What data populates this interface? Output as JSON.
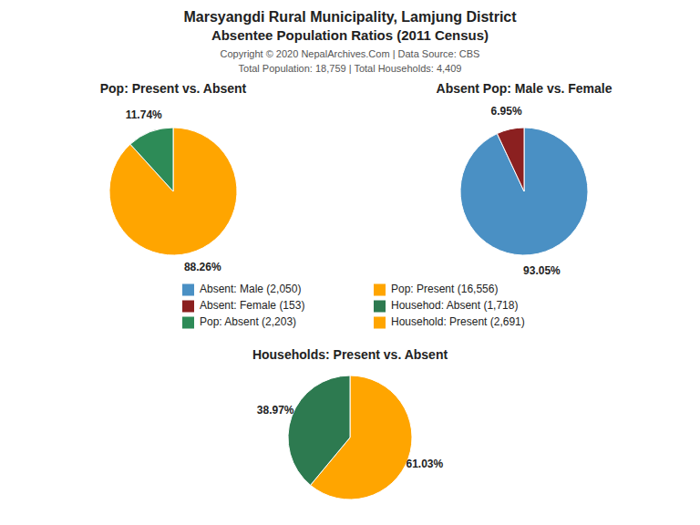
{
  "title": "Marsyangdi Rural Municipality, Lamjung District",
  "subtitle": "Absentee Population Ratios (2011 Census)",
  "annotations": [
    "Copyright © 2020 NepalArchives.Com | Data Source: CBS",
    "Total Population: 18,759 | Total Households: 4,409"
  ],
  "chart_data": [
    {
      "type": "pie",
      "title": "Pop: Present vs. Absent",
      "values": [
        88.26,
        11.74
      ],
      "value_labels": [
        "88.26%",
        "11.74%"
      ],
      "colors": [
        "#FFA500",
        "#2D8B57"
      ],
      "data_labels": true
    },
    {
      "type": "pie",
      "title": "Absent Pop: Male vs. Female",
      "values": [
        93.05,
        6.95
      ],
      "value_labels": [
        "93.05%",
        "6.95%"
      ],
      "colors": [
        "#4A90C4",
        "#8B2020"
      ],
      "data_labels": true
    },
    {
      "type": "pie",
      "title": "Households: Present vs. Absent",
      "values": [
        61.03,
        38.97
      ],
      "value_labels": [
        "61.03%",
        "38.97%"
      ],
      "colors": [
        "#FFA500",
        "#2D7A50"
      ],
      "data_labels": true
    },
    {
      "type": "legend",
      "categories": [
        "Absent: Male (2,050)",
        "Absent: Female (153)",
        "Pop: Absent (2,203)",
        "Pop: Present (16,556)",
        "Househod: Absent (1,718)",
        "Household: Present (2,691)"
      ],
      "colors": [
        "#4A90C4",
        "#8B2020",
        "#2D8B57",
        "#FFA500",
        "#2D7A50",
        "#FFA500"
      ]
    }
  ]
}
